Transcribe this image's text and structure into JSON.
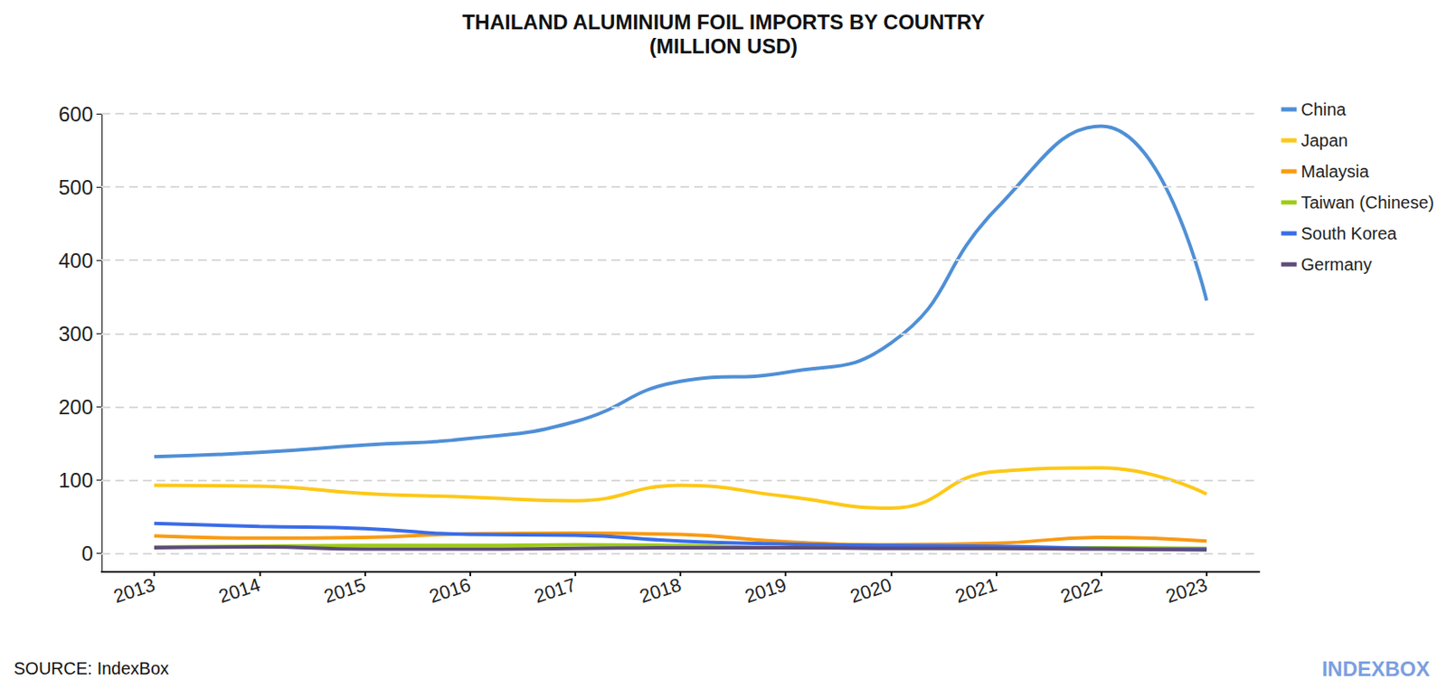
{
  "chart_data": {
    "type": "line",
    "title": "THAILAND ALUMINIUM FOIL IMPORTS BY COUNTRY",
    "subtitle": "(MILLION USD)",
    "source": "SOURCE: IndexBox",
    "brand": "INDEXBOX",
    "categories": [
      "2013",
      "2014",
      "2015",
      "2016",
      "2017",
      "2018",
      "2019",
      "2020",
      "2021",
      "2022",
      "2023"
    ],
    "series": [
      {
        "name": "China",
        "color": "#4f8fd6",
        "values": [
          132,
          138,
          148,
          157,
          180,
          235,
          247,
          287,
          470,
          583,
          345
        ]
      },
      {
        "name": "Japan",
        "color": "#fdc817",
        "values": [
          93,
          92,
          82,
          77,
          72,
          93,
          78,
          62,
          112,
          117,
          81
        ]
      },
      {
        "name": "Malaysia",
        "color": "#f99a12",
        "values": [
          24,
          21,
          22,
          27,
          28,
          26,
          16,
          12,
          14,
          22,
          17
        ]
      },
      {
        "name": "Taiwan (Chinese)",
        "color": "#9ccc16",
        "values": [
          9,
          10,
          11,
          11,
          12,
          11,
          8,
          8,
          7,
          8,
          7
        ]
      },
      {
        "name": "South Korea",
        "color": "#3b6de8",
        "values": [
          41,
          37,
          34,
          26,
          25,
          17,
          13,
          11,
          10,
          7,
          6
        ]
      },
      {
        "name": "Germany",
        "color": "#5c4b7a",
        "values": [
          8,
          9,
          6,
          6,
          7,
          8,
          8,
          7,
          7,
          6,
          5
        ]
      }
    ],
    "ylim": [
      -25,
      600
    ],
    "yticks": [
      0,
      100,
      200,
      300,
      400,
      500,
      600
    ],
    "grid": true,
    "legend": "right",
    "line_style": "solid",
    "data_labels": false
  }
}
